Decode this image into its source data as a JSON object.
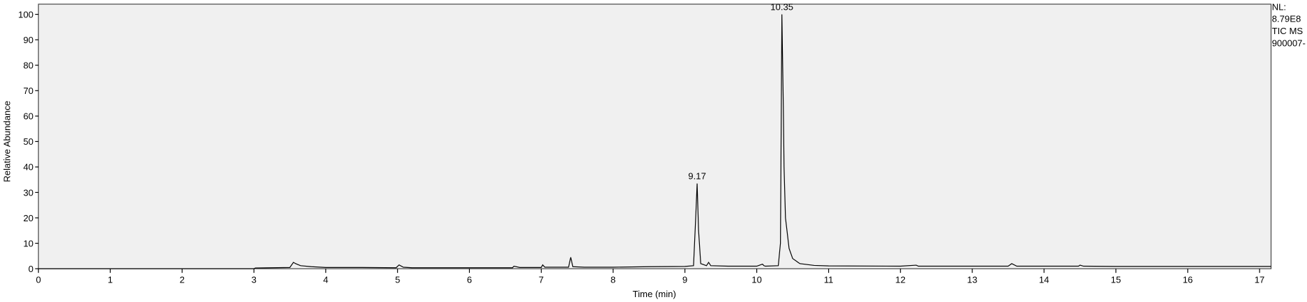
{
  "chart_data": {
    "type": "line",
    "x_label": "Time (min)",
    "y_label": "Relative Abundance",
    "xlim": [
      0,
      17.16
    ],
    "ylim": [
      0,
      104
    ],
    "xticks": [
      0,
      1,
      2,
      3,
      4,
      5,
      6,
      7,
      8,
      9,
      10,
      11,
      12,
      13,
      14,
      15,
      16,
      17
    ],
    "yticks": [
      0,
      10,
      20,
      30,
      40,
      50,
      60,
      70,
      80,
      90,
      100
    ],
    "color": "#000000",
    "background": "#f0f0f0",
    "x": [
      0,
      3,
      3.02,
      3.5,
      3.55,
      3.58,
      3.65,
      3.8,
      4.0,
      4.5,
      4.98,
      5.02,
      5.08,
      5.2,
      6,
      6.6,
      6.62,
      6.7,
      7.0,
      7.02,
      7.05,
      7.38,
      7.41,
      7.44,
      7.6,
      8,
      8.5,
      9.0,
      9.12,
      9.15,
      9.17,
      9.19,
      9.22,
      9.3,
      9.33,
      9.36,
      9.6,
      10.0,
      10.08,
      10.1,
      10.12,
      10.3,
      10.33,
      10.35,
      10.37,
      10.38,
      10.4,
      10.45,
      10.5,
      10.6,
      10.8,
      11,
      12,
      12.22,
      12.25,
      13,
      13.5,
      13.55,
      13.62,
      14,
      14.48,
      14.5,
      14.55,
      15,
      16,
      17.16
    ],
    "values": [
      0,
      0,
      0.3,
      0.5,
      2.5,
      2,
      1.2,
      0.8,
      0.5,
      0.5,
      0.4,
      1.5,
      0.6,
      0.4,
      0.4,
      0.4,
      1,
      0.5,
      0.5,
      1.5,
      0.6,
      0.6,
      4.5,
      0.8,
      0.6,
      0.6,
      0.8,
      0.9,
      1.2,
      20,
      33.5,
      15,
      2,
      1.2,
      2.5,
      1.2,
      1,
      1,
      1.8,
      1.2,
      1,
      1.2,
      10,
      100,
      64,
      40,
      20,
      8,
      4,
      2,
      1.3,
      1.1,
      1,
      1.4,
      1,
      1,
      1,
      2,
      1,
      1,
      1,
      1.4,
      1,
      0.9,
      0.9,
      0.9
    ],
    "peak_labels": [
      9.17,
      10.35
    ],
    "side_text": [
      "NL:",
      "8.79E8",
      "TIC  MS",
      "900007-"
    ]
  }
}
